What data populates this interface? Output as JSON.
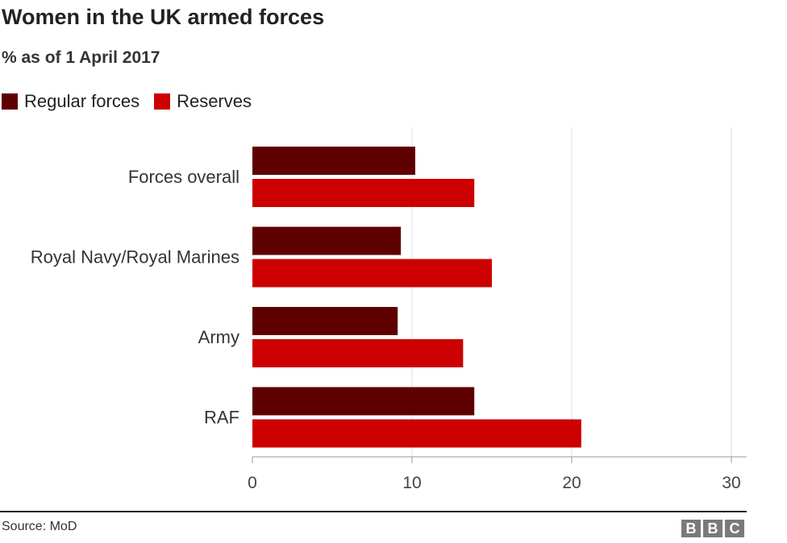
{
  "chart_data": {
    "type": "bar",
    "orientation": "horizontal",
    "title": "Women in the UK armed forces",
    "subtitle": "% as of 1 April 2017",
    "categories": [
      "Forces overall",
      "Royal Navy/Royal Marines",
      "Army",
      "RAF"
    ],
    "series": [
      {
        "name": "Regular forces",
        "color": "#5e0000",
        "values": [
          10.2,
          9.3,
          9.1,
          13.9
        ]
      },
      {
        "name": "Reserves",
        "color": "#cc0000",
        "values": [
          13.9,
          15.0,
          13.2,
          20.6
        ]
      }
    ],
    "xlim": [
      0,
      30
    ],
    "xticks": [
      "0",
      "10",
      "20",
      "30"
    ],
    "grid": true,
    "legend": "top-left",
    "xlabel": "",
    "ylabel": ""
  },
  "footer": {
    "source": "Source: MoD",
    "logo": [
      "B",
      "B",
      "C"
    ]
  }
}
